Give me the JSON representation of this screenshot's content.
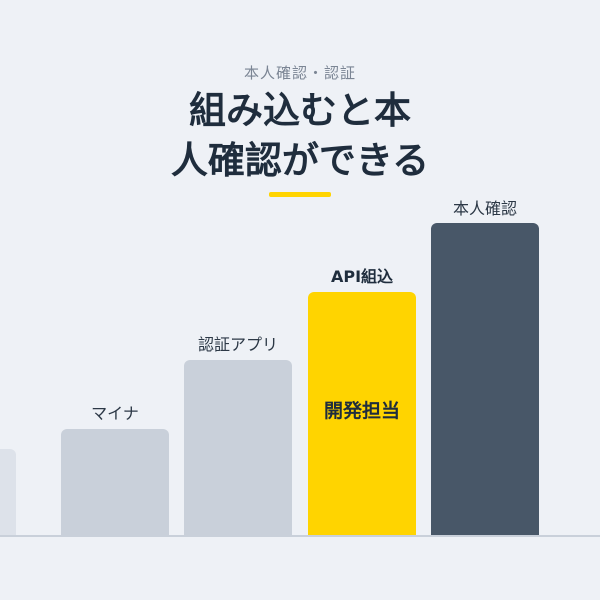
{
  "header": {
    "eyebrow": "本人確認・認証",
    "headline_line1": "組み込むと本",
    "headline_line2": "人確認ができる"
  },
  "chart_data": {
    "type": "bar",
    "categories": [
      "",
      "マイナ",
      "認証アプリ",
      "API組込",
      "本人確認"
    ],
    "values": [
      1,
      2,
      3,
      4,
      5
    ],
    "highlight": {
      "category": "API組込",
      "inner_label": "開発担当",
      "color": "#ffd400"
    },
    "colors": {
      "muted": "#c9d0da",
      "highlight": "#ffd400",
      "final": "#485768"
    },
    "axes": "none",
    "grid": false
  }
}
